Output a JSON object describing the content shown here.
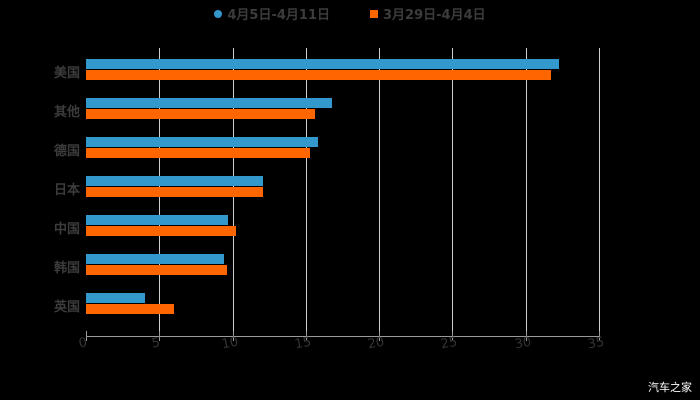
{
  "chart_data": {
    "type": "bar",
    "orientation": "horizontal",
    "title": "",
    "xlabel": "",
    "ylabel": "",
    "xlim": [
      0,
      35
    ],
    "x_ticks": [
      "0",
      "5",
      "10",
      "15",
      "20",
      "25",
      "30",
      "35"
    ],
    "grid": true,
    "legend_position": "top",
    "categories": [
      "美国",
      "其他",
      "德国",
      "日本",
      "中国",
      "韩国",
      "英国"
    ],
    "series": [
      {
        "name": "4月5日-4月11日",
        "color": "#3399cc",
        "marker": "circle",
        "values": [
          32.3,
          16.8,
          15.8,
          12.1,
          9.7,
          9.4,
          4.0
        ]
      },
      {
        "name": "3月29日-4月4日",
        "color": "#ff6600",
        "marker": "square",
        "values": [
          31.7,
          15.6,
          15.3,
          12.1,
          10.2,
          9.6,
          6.0
        ]
      }
    ]
  },
  "watermark": "汽车之家"
}
